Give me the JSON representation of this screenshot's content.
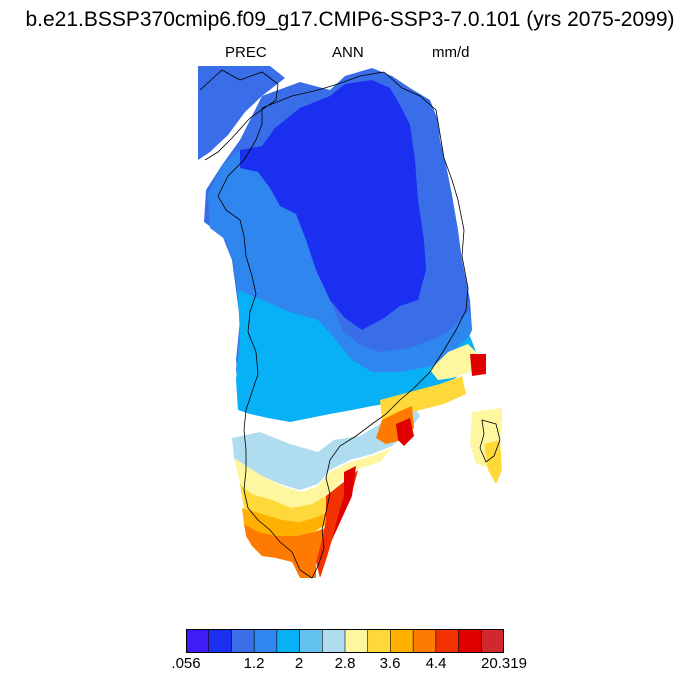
{
  "title": "b.e21.BSSP370cmip6.f09_g17.CMIP6-SSP3-7.0.101 (yrs 2075-2099)",
  "subtitle": {
    "variable": "PREC",
    "period": "ANN",
    "units": "mm/d"
  },
  "colorbar": {
    "colors": [
      "#3e1cf5",
      "#1a2ff0",
      "#3a6ee8",
      "#2f86ee",
      "#08b0f5",
      "#62c4ee",
      "#b0dcf0",
      "#fff7a0",
      "#ffd83a",
      "#ffb000",
      "#ff7a00",
      "#f23200",
      "#e00000",
      "#d0282c"
    ],
    "tick_labels": [
      ".056",
      "1.2",
      "2",
      "2.8",
      "3.6",
      "4.4",
      "20.319"
    ]
  }
}
